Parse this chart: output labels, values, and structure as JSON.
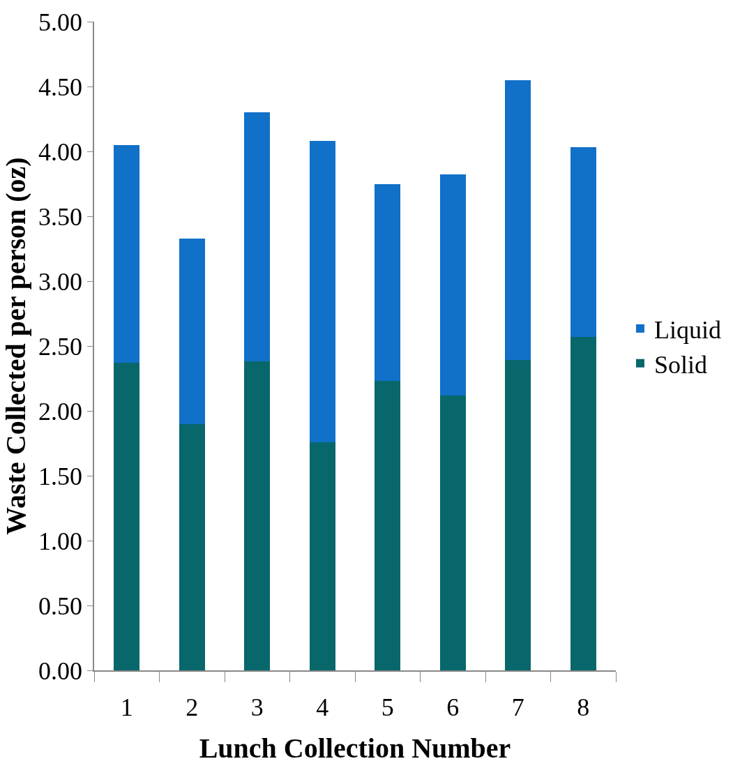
{
  "chart_data": {
    "type": "bar",
    "stacked": true,
    "xlabel": "Lunch Collection Number",
    "ylabel": "Waste Collected per person (oz)",
    "categories": [
      "1",
      "2",
      "3",
      "4",
      "5",
      "6",
      "7",
      "8"
    ],
    "series": [
      {
        "name": "Solid",
        "color": "#08676b",
        "values": [
          2.37,
          1.9,
          2.38,
          1.76,
          2.23,
          2.12,
          2.39,
          2.57
        ]
      },
      {
        "name": "Liquid",
        "color": "#1170c8",
        "values": [
          1.68,
          1.43,
          1.92,
          2.32,
          1.52,
          1.7,
          2.16,
          1.46
        ]
      }
    ],
    "ylim": [
      0,
      5
    ],
    "yticks": [
      {
        "value": 0,
        "label": "0.00"
      },
      {
        "value": 0.5,
        "label": "0.50"
      },
      {
        "value": 1,
        "label": "1.00"
      },
      {
        "value": 1.5,
        "label": "1.50"
      },
      {
        "value": 2,
        "label": "2.00"
      },
      {
        "value": 2.5,
        "label": "2.50"
      },
      {
        "value": 3,
        "label": "3.00"
      },
      {
        "value": 3.5,
        "label": "3.50"
      },
      {
        "value": 4,
        "label": "4.00"
      },
      {
        "value": 4.5,
        "label": "4.50"
      },
      {
        "value": 5,
        "label": "5.00"
      }
    ],
    "legend": "right"
  }
}
